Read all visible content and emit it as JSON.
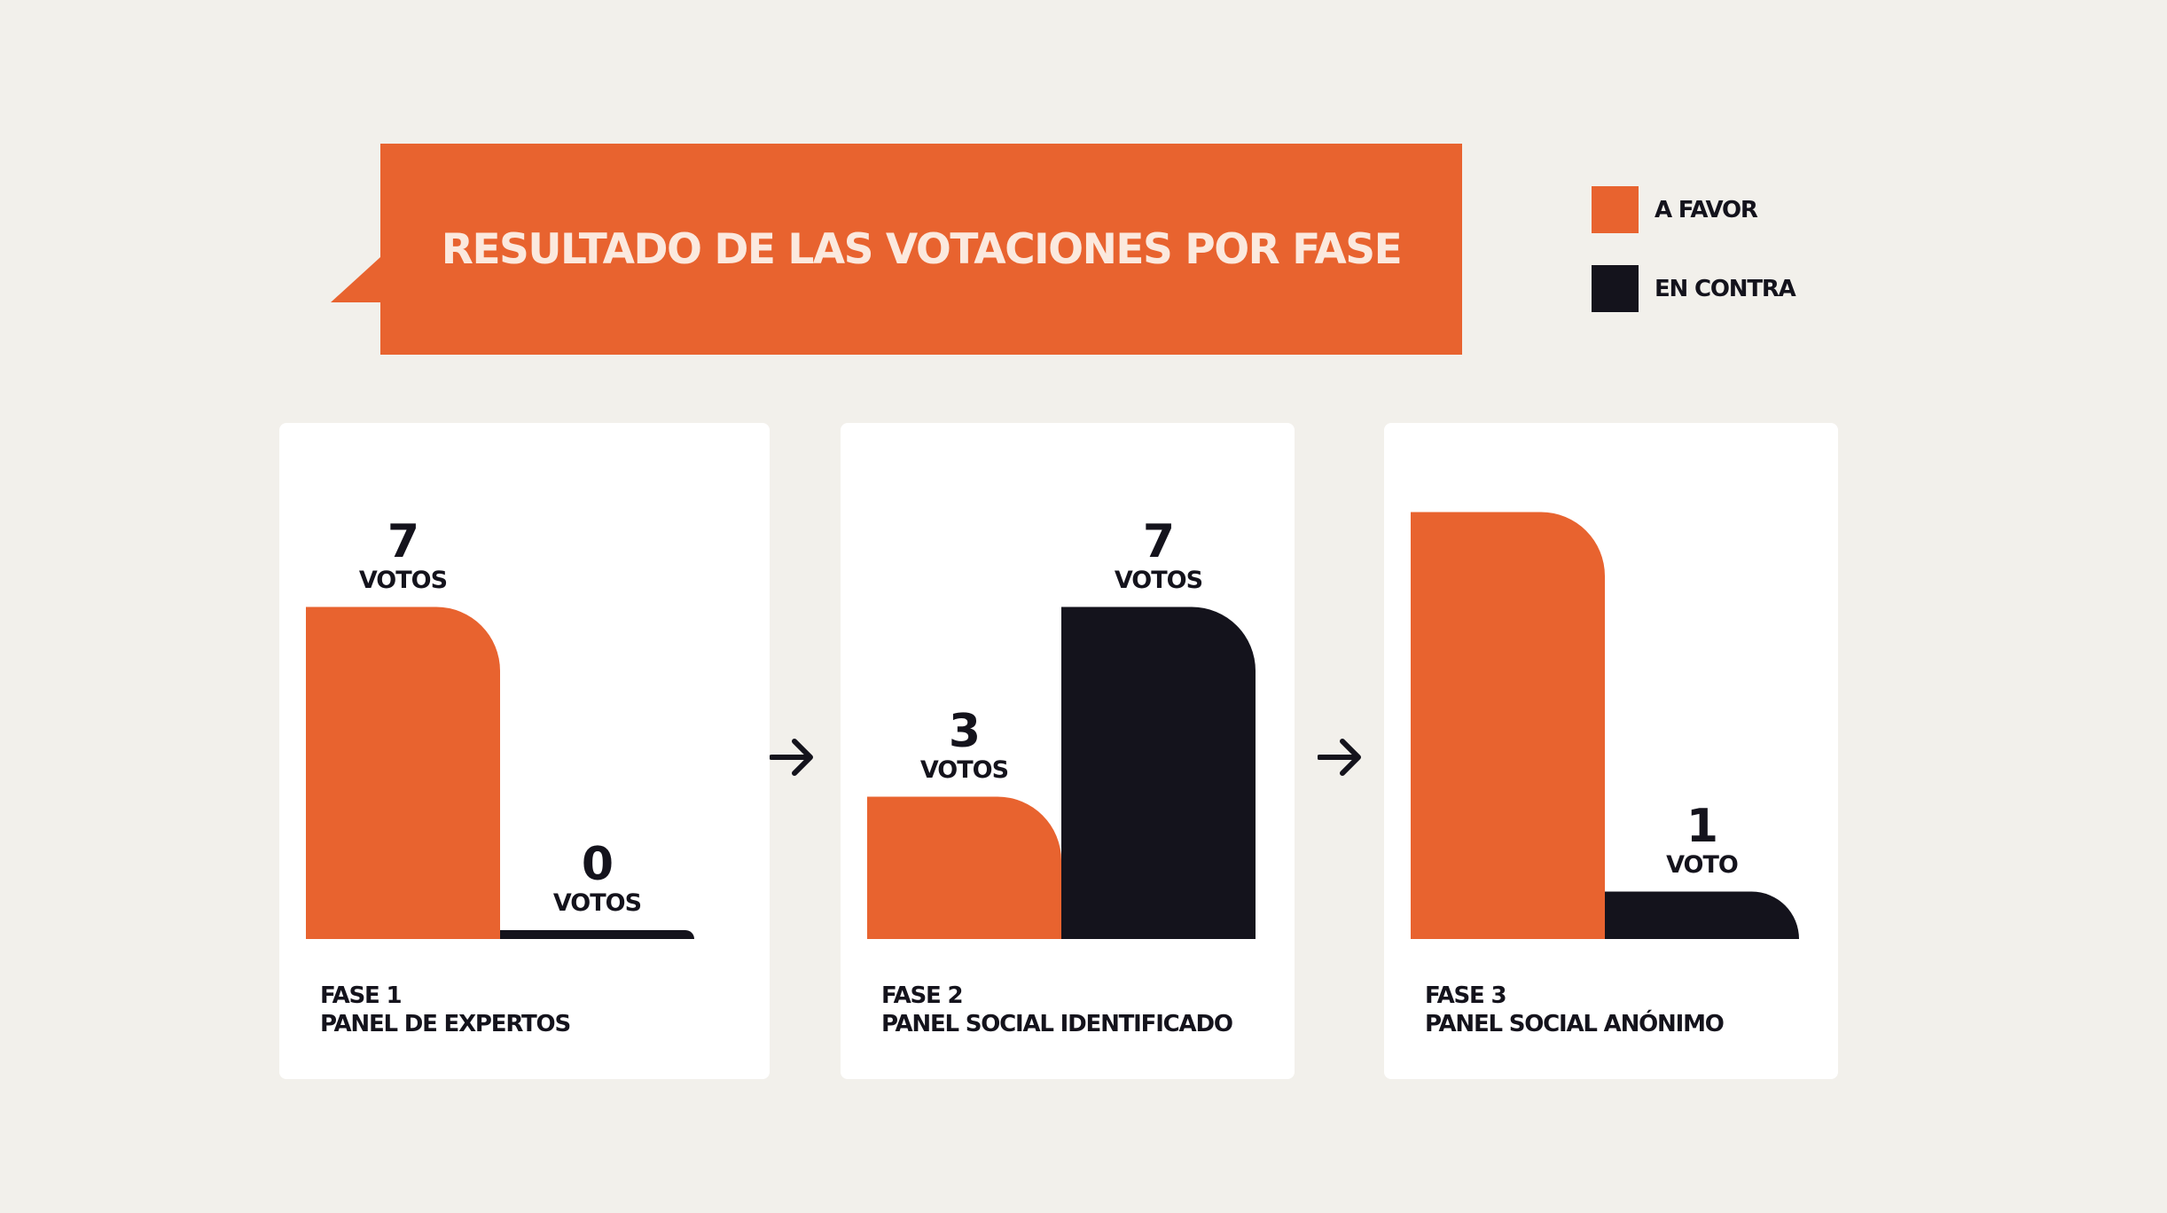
{
  "title": "RESULTADO DE LAS VOTACIONES POR FASE",
  "legend": [
    {
      "label": "A FAVOR",
      "color": "#e8632f"
    },
    {
      "label": "EN CONTRA",
      "color": "#14131c"
    }
  ],
  "colors": {
    "favor": "#e8632f",
    "contra": "#14131c",
    "background": "#f2f0eb",
    "card": "#ffffff"
  },
  "icons": {
    "between_phases": "arrow-right-icon"
  },
  "chart_data": {
    "type": "bar",
    "title": "RESULTADO DE LAS VOTACIONES POR FASE",
    "categories": [
      "FASE 1 PANEL DE EXPERTOS",
      "FASE 2 PANEL SOCIAL IDENTIFICADO",
      "FASE 3 PANEL SOCIAL ANÓNIMO"
    ],
    "series": [
      {
        "name": "A FAVOR",
        "values": [
          7,
          3,
          9
        ]
      },
      {
        "name": "EN CONTRA",
        "values": [
          0,
          7,
          1
        ]
      }
    ],
    "ylim": [
      0,
      9
    ],
    "grid": false,
    "legend": "top-right",
    "phases": [
      {
        "line1": "FASE 1",
        "line2": "PANEL DE EXPERTOS",
        "favor": 7,
        "contra": 0,
        "labels": {
          "favor": {
            "number": "7",
            "unit": "VOTOS"
          },
          "contra": {
            "number": "0",
            "unit": "VOTOS"
          }
        }
      },
      {
        "line1": "FASE 2",
        "line2": "PANEL SOCIAL IDENTIFICADO",
        "favor": 3,
        "contra": 7,
        "labels": {
          "favor": {
            "number": "3",
            "unit": "VOTOS"
          },
          "contra": {
            "number": "7",
            "unit": "VOTOS"
          }
        }
      },
      {
        "line1": "FASE 3",
        "line2": "PANEL SOCIAL ANÓNIMO",
        "favor": 9,
        "contra": 1,
        "labels": {
          "contra": {
            "number": "1",
            "unit": "VOTO"
          }
        }
      }
    ]
  }
}
